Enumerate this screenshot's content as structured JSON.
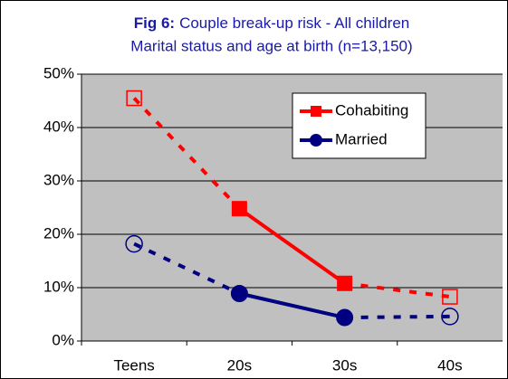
{
  "chart_data": {
    "type": "line",
    "title": {
      "label": "Fig 6:",
      "text": "Couple break-up risk - All children"
    },
    "subtitle": "Marital status and age at birth (n=13,150)",
    "categories": [
      "Teens",
      "20s",
      "30s",
      "40s"
    ],
    "series": [
      {
        "name": "Cohabiting",
        "color": "#ff0000",
        "marker": "square",
        "open_markers": [
          0,
          3
        ],
        "values": [
          45.5,
          24.8,
          10.8,
          8.3
        ]
      },
      {
        "name": "Married",
        "color": "#000080",
        "marker": "circle",
        "open_markers": [
          0,
          3
        ],
        "values": [
          18.2,
          8.9,
          4.4,
          4.6
        ]
      }
    ],
    "ylim": [
      0,
      50
    ],
    "yticks": [
      {
        "value": 0,
        "label": "0%"
      },
      {
        "value": 10,
        "label": "10%"
      },
      {
        "value": 20,
        "label": "20%"
      },
      {
        "value": 30,
        "label": "30%"
      },
      {
        "value": 40,
        "label": "40%"
      },
      {
        "value": 50,
        "label": "50%"
      }
    ],
    "grid": true,
    "legend": "upper right"
  }
}
